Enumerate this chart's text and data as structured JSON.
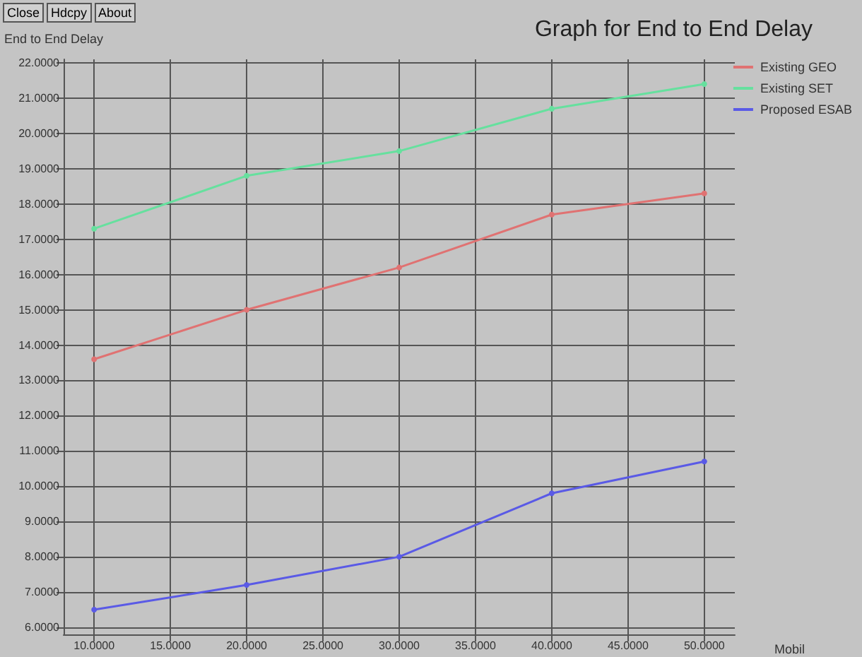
{
  "chart_data": {
    "type": "line",
    "title": "Graph for End to End Delay",
    "ylabel": "End to End Delay",
    "xlabel": "Mobil",
    "annotations": [
      "Close",
      "Hdcpy",
      "About"
    ],
    "x": [
      10,
      20,
      30,
      40,
      50
    ],
    "series": [
      {
        "name": "Existing GEO",
        "color": "#e07272",
        "values": [
          13.6,
          15.0,
          16.2,
          17.7,
          18.3
        ]
      },
      {
        "name": "Existing SET",
        "color": "#66e09e",
        "values": [
          17.3,
          18.8,
          19.5,
          20.7,
          21.4
        ]
      },
      {
        "name": "Proposed ESAB",
        "color": "#5a5ae6",
        "values": [
          6.5,
          7.2,
          8.0,
          9.8,
          10.7
        ]
      }
    ],
    "xlim": [
      8,
      52
    ],
    "xticks": [
      {
        "value": 10,
        "label": "10.0000"
      },
      {
        "value": 15,
        "label": "15.0000"
      },
      {
        "value": 20,
        "label": "20.0000"
      },
      {
        "value": 25,
        "label": "25.0000"
      },
      {
        "value": 30,
        "label": "30.0000"
      },
      {
        "value": 35,
        "label": "35.0000"
      },
      {
        "value": 40,
        "label": "40.0000"
      },
      {
        "value": 45,
        "label": "45.0000"
      },
      {
        "value": 50,
        "label": "50.0000"
      }
    ],
    "ylim": [
      5.8,
      22.1
    ],
    "yticks": [
      {
        "value": 6,
        "label": "6.0000"
      },
      {
        "value": 7,
        "label": "7.0000"
      },
      {
        "value": 8,
        "label": "8.0000"
      },
      {
        "value": 9,
        "label": "9.0000"
      },
      {
        "value": 10,
        "label": "10.0000"
      },
      {
        "value": 11,
        "label": "11.0000"
      },
      {
        "value": 12,
        "label": "12.0000"
      },
      {
        "value": 13,
        "label": "13.0000"
      },
      {
        "value": 14,
        "label": "14.0000"
      },
      {
        "value": 15,
        "label": "15.0000"
      },
      {
        "value": 16,
        "label": "16.0000"
      },
      {
        "value": 17,
        "label": "17.0000"
      },
      {
        "value": 18,
        "label": "18.0000"
      },
      {
        "value": 19,
        "label": "19.0000"
      },
      {
        "value": 20,
        "label": "20.0000"
      },
      {
        "value": 21,
        "label": "21.0000"
      },
      {
        "value": 22,
        "label": "22.0000"
      }
    ],
    "grid": true,
    "legend": "top right",
    "marker": "circle",
    "line_style": "solid"
  }
}
